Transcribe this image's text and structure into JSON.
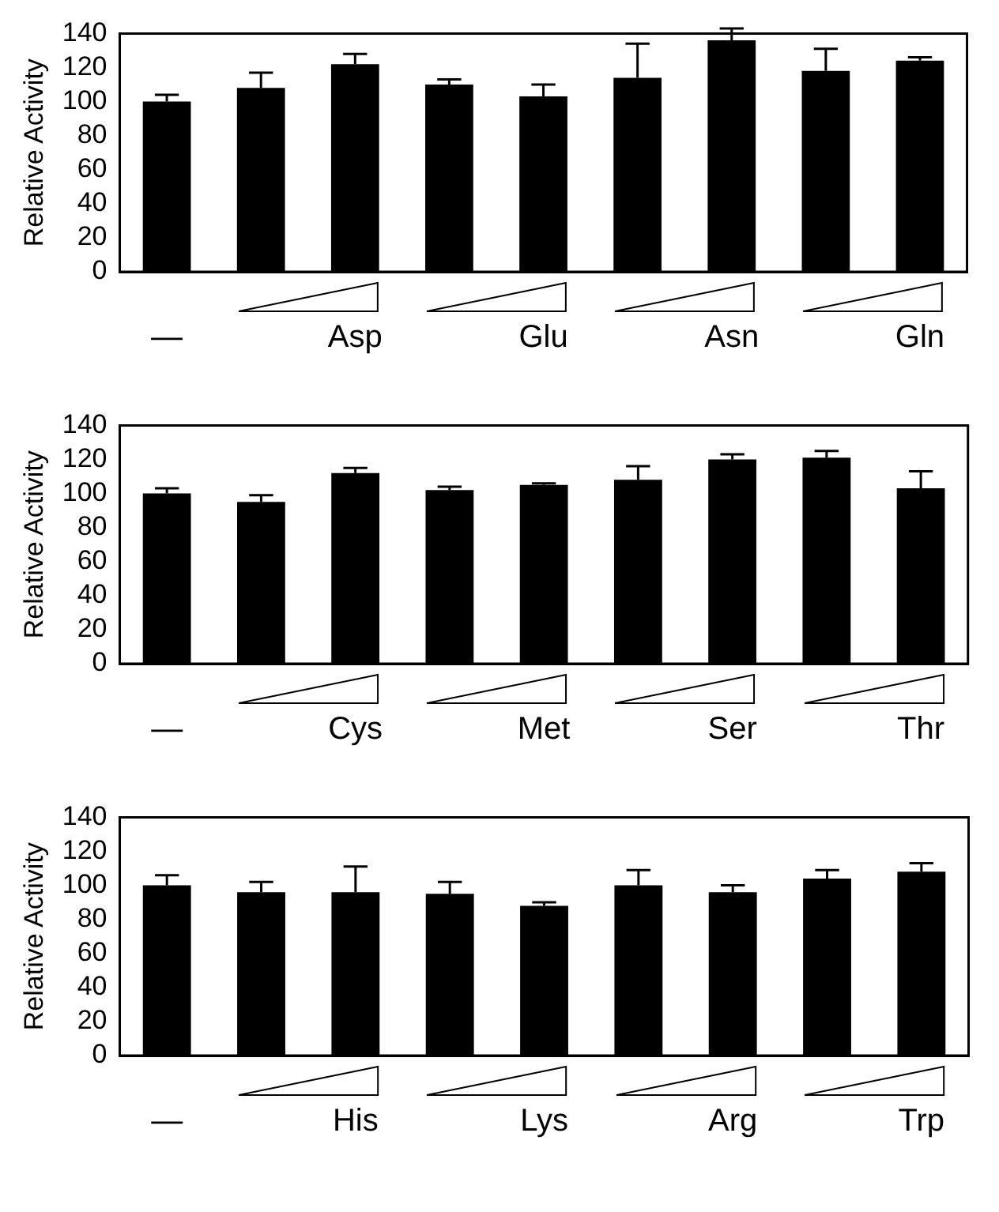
{
  "chart_data": [
    {
      "type": "bar",
      "ylabel": "Relative Activity",
      "categories": [
        "—",
        null,
        "Asp",
        null,
        "Glu",
        null,
        "Asn",
        null,
        "Gln"
      ],
      "color": "#000000",
      "values": [
        100,
        108,
        122,
        110,
        103,
        114,
        136,
        118,
        124
      ],
      "errors": [
        [
          100,
          104
        ],
        [
          108,
          117
        ],
        [
          122,
          128
        ],
        [
          110,
          113
        ],
        [
          103,
          110
        ],
        [
          114,
          134
        ],
        [
          136,
          143
        ],
        [
          118,
          131
        ],
        [
          124,
          126
        ]
      ],
      "ylim": [
        0,
        140
      ],
      "yticks": [
        0,
        20,
        40,
        60,
        80,
        100,
        120,
        140
      ],
      "grid": false,
      "legend": false
    },
    {
      "type": "bar",
      "ylabel": "Relative Activity",
      "categories": [
        "—",
        null,
        "Cys",
        null,
        "Met",
        null,
        "Ser",
        null,
        "Thr"
      ],
      "color": "#000000",
      "values": [
        100,
        95,
        112,
        102,
        105,
        108,
        120,
        121,
        103
      ],
      "errors": [
        [
          100,
          103
        ],
        [
          95,
          99
        ],
        [
          112,
          115
        ],
        [
          102,
          104
        ],
        [
          105,
          106
        ],
        [
          108,
          116
        ],
        [
          120,
          123
        ],
        [
          121,
          125
        ],
        [
          103,
          113
        ]
      ],
      "ylim": [
        0,
        140
      ],
      "yticks": [
        0,
        20,
        40,
        60,
        80,
        100,
        120,
        140
      ],
      "grid": false,
      "legend": false
    },
    {
      "type": "bar",
      "ylabel": "Relative Activity",
      "categories": [
        "—",
        null,
        "His",
        null,
        "Lys",
        null,
        "Arg",
        null,
        "Trp"
      ],
      "color": "#000000",
      "values": [
        100,
        96,
        96,
        95,
        88,
        100,
        96,
        104,
        108
      ],
      "errors": [
        [
          100,
          106
        ],
        [
          96,
          102
        ],
        [
          96,
          111
        ],
        [
          95,
          102
        ],
        [
          88,
          90
        ],
        [
          100,
          109
        ],
        [
          96,
          100
        ],
        [
          104,
          109
        ],
        [
          108,
          113
        ]
      ],
      "ylim": [
        0,
        140
      ],
      "yticks": [
        0,
        20,
        40,
        60,
        80,
        100,
        120,
        140
      ],
      "grid": false,
      "legend": false
    }
  ]
}
